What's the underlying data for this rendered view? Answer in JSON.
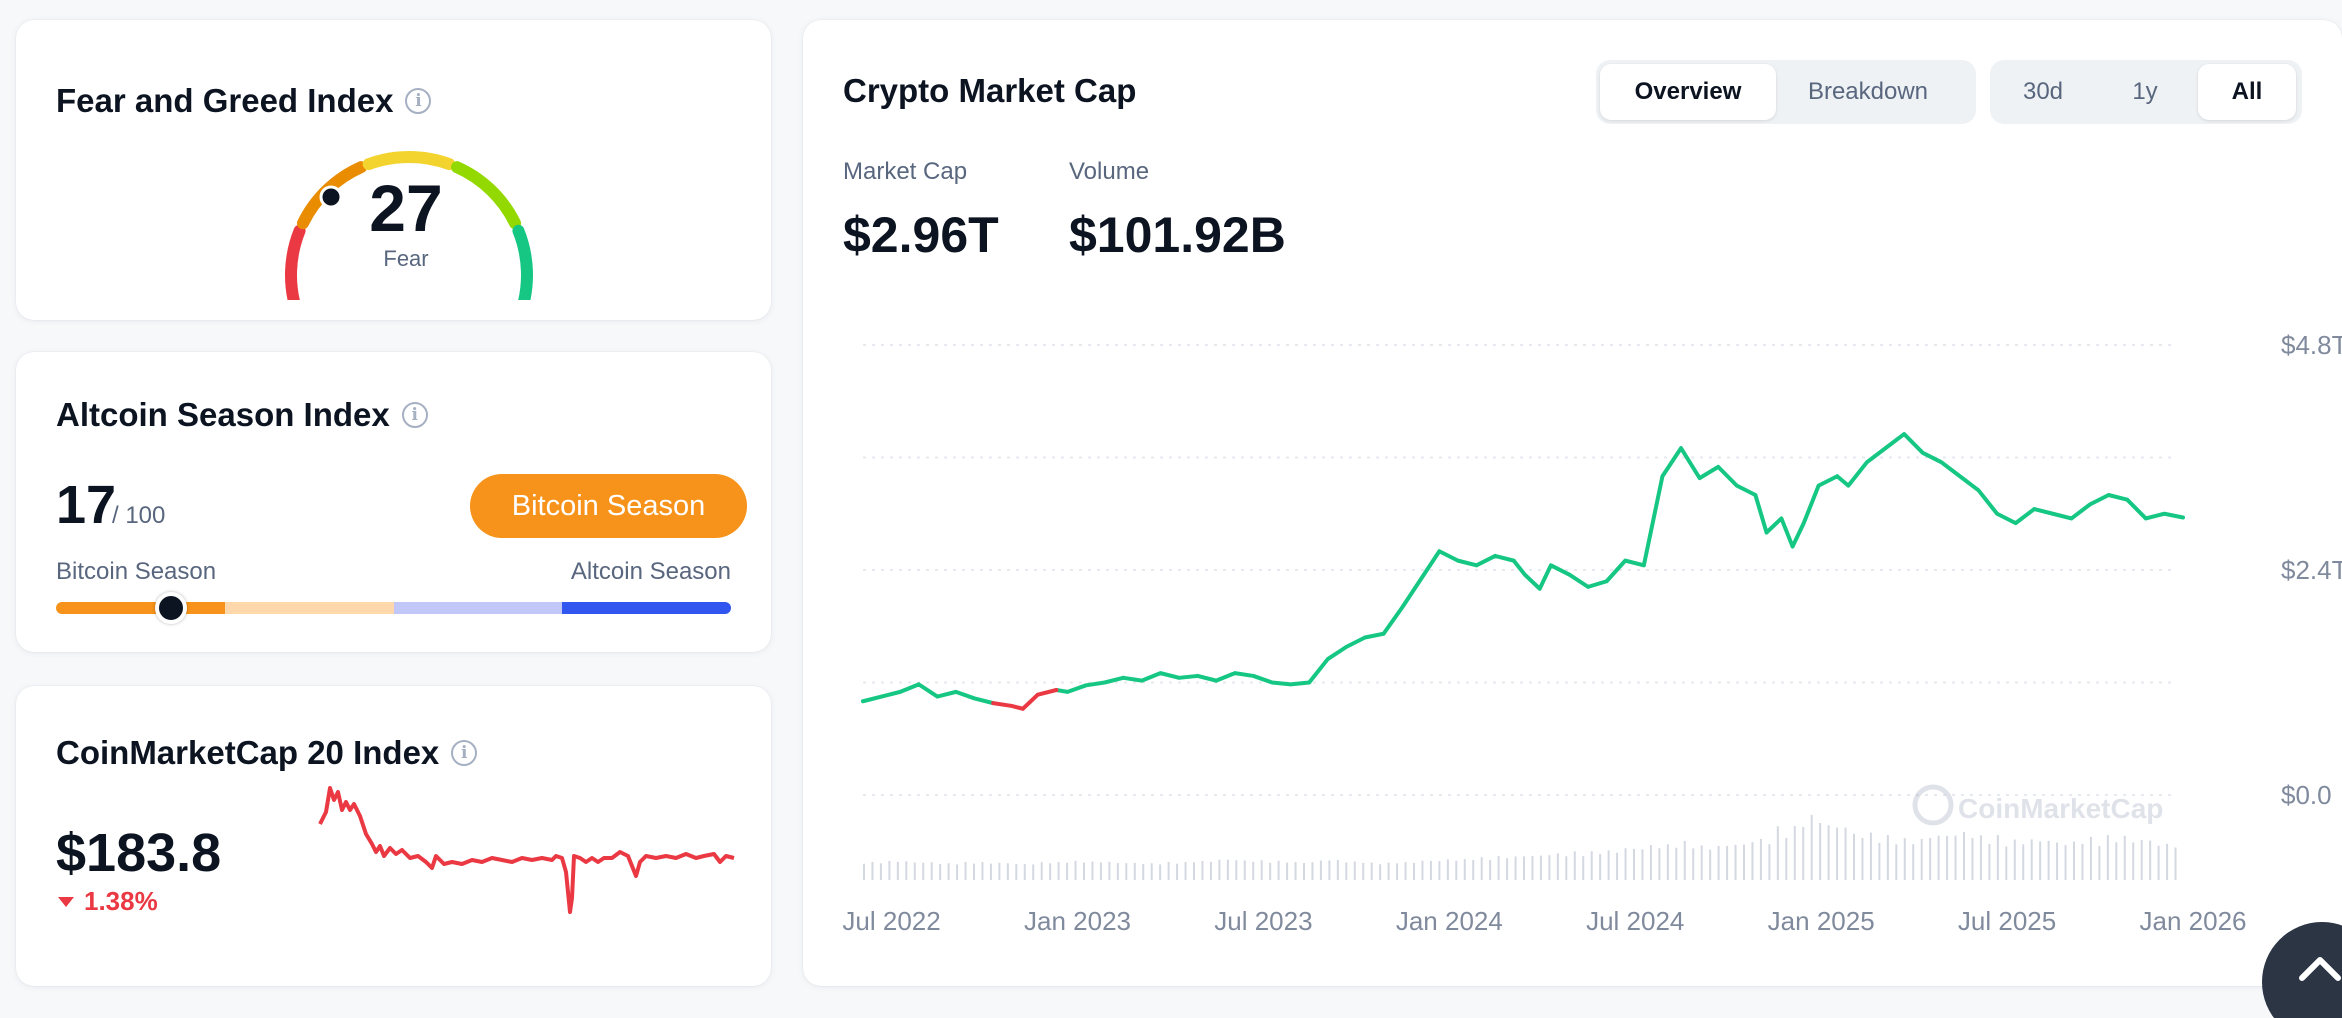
{
  "fear_greed": {
    "title": "Fear and Greed Index",
    "info_icon": "info-icon",
    "value": "27",
    "label": "Fear",
    "colors": [
      "#ea3943",
      "#ea8c00",
      "#f3d42f",
      "#93d900",
      "#16c784"
    ]
  },
  "altcoin_season": {
    "title": "Altcoin Season Index",
    "value": "17",
    "max": "/ 100",
    "badge": "Bitcoin Season",
    "left_label": "Bitcoin Season",
    "right_label": "Altcoin Season",
    "level_fraction": 0.17,
    "colors": [
      "#f7931a",
      "#fed7aa",
      "#c1c8f8",
      "#3156ef"
    ]
  },
  "cmc20": {
    "title": "CoinMarketCap 20 Index",
    "value": "$183.8",
    "change": "1.38%",
    "spark_color": "#ea3943"
  },
  "market_cap": {
    "title": "Crypto Market Cap",
    "view_tabs": [
      "Overview",
      "Breakdown"
    ],
    "active_view": "Overview",
    "range_tabs": [
      "30d",
      "1y",
      "All"
    ],
    "active_range": "All",
    "market_cap_label": "Market Cap",
    "market_cap_value": "$2.96T",
    "volume_label": "Volume",
    "volume_value": "$101.92B",
    "watermark": "CoinMarketCap"
  },
  "chart_data": {
    "type": "line",
    "title": "Crypto Market Cap",
    "xlabel": "",
    "ylabel": "",
    "y_tick_labels": [
      "$4.8T",
      "$2.4T",
      "$0.0"
    ],
    "y_ticks": [
      4.8,
      2.4,
      0.0
    ],
    "x_tick_labels": [
      "Jul 2022",
      "Jan 2023",
      "Jul 2023",
      "Jan 2024",
      "Jul 2024",
      "Jan 2025",
      "Jul 2025",
      "Jan 2026"
    ],
    "x_tick_positions": [
      2022.5,
      2023.0,
      2023.5,
      2024.0,
      2024.5,
      2025.0,
      2025.5,
      2026.0
    ],
    "xlim": [
      2022.45,
      2026.0
    ],
    "ylim": [
      0,
      4.8
    ],
    "series": [
      {
        "name": "Market Cap (T)",
        "x": [
          2022.45,
          2022.5,
          2022.55,
          2022.6,
          2022.65,
          2022.7,
          2022.75,
          2022.8,
          2022.85,
          2022.88,
          2022.92,
          2022.97,
          2023.0,
          2023.05,
          2023.1,
          2023.15,
          2023.2,
          2023.25,
          2023.3,
          2023.35,
          2023.4,
          2023.45,
          2023.5,
          2023.55,
          2023.6,
          2023.65,
          2023.7,
          2023.75,
          2023.8,
          2023.85,
          2023.9,
          2023.95,
          2024.0,
          2024.05,
          2024.1,
          2024.15,
          2024.2,
          2024.23,
          2024.27,
          2024.3,
          2024.35,
          2024.4,
          2024.45,
          2024.5,
          2024.55,
          2024.6,
          2024.65,
          2024.7,
          2024.75,
          2024.8,
          2024.85,
          2024.88,
          2024.92,
          2024.95,
          2024.98,
          2025.02,
          2025.07,
          2025.1,
          2025.15,
          2025.2,
          2025.25,
          2025.3,
          2025.35,
          2025.4,
          2025.45,
          2025.5,
          2025.55,
          2025.6,
          2025.65,
          2025.7,
          2025.75,
          2025.8,
          2025.85,
          2025.9,
          2025.95,
          2026.0
        ],
        "y": [
          1.0,
          1.05,
          1.1,
          1.18,
          1.05,
          1.1,
          1.03,
          0.98,
          0.95,
          0.92,
          1.07,
          1.12,
          1.1,
          1.17,
          1.2,
          1.25,
          1.22,
          1.3,
          1.25,
          1.27,
          1.22,
          1.3,
          1.27,
          1.2,
          1.18,
          1.2,
          1.45,
          1.58,
          1.68,
          1.72,
          2.0,
          2.3,
          2.6,
          2.5,
          2.45,
          2.55,
          2.5,
          2.35,
          2.2,
          2.45,
          2.35,
          2.22,
          2.28,
          2.5,
          2.45,
          3.4,
          3.7,
          3.38,
          3.5,
          3.3,
          3.2,
          2.8,
          2.95,
          2.65,
          2.9,
          3.3,
          3.4,
          3.3,
          3.55,
          3.7,
          3.85,
          3.65,
          3.55,
          3.4,
          3.25,
          3.0,
          2.9,
          3.05,
          3.0,
          2.95,
          3.1,
          3.2,
          3.15,
          2.95,
          3.0,
          2.96
        ]
      },
      {
        "name": "Volume (relative)",
        "values": [
          0.1,
          0.12,
          0.1,
          0.08,
          0.1,
          0.09,
          0.07,
          0.1,
          0.12,
          0.11,
          0.09,
          0.08,
          0.1,
          0.12,
          0.15,
          0.13,
          0.12,
          0.1,
          0.14,
          0.11,
          0.09,
          0.1,
          0.13,
          0.15,
          0.18,
          0.2,
          0.22,
          0.25,
          0.28,
          0.3,
          0.35,
          0.4,
          0.45,
          0.38,
          0.42,
          0.5,
          0.7,
          0.9,
          0.75,
          0.6,
          0.55,
          0.5,
          0.58,
          0.62,
          0.55,
          0.48,
          0.5,
          0.45,
          0.52,
          0.55,
          0.5,
          0.42
        ]
      }
    ]
  }
}
